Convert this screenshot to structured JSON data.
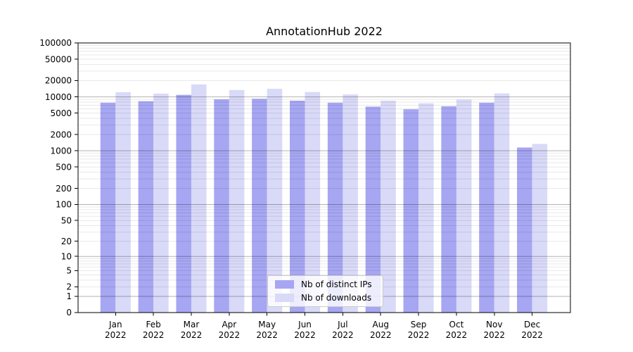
{
  "title": "AnnotationHub 2022",
  "colors": {
    "bar_distinct_ips": "#a6a6f2",
    "bar_downloads": "#d9d9f8",
    "grid_major": "rgba(0,0,0,0.30)",
    "grid_minor": "rgba(0,0,0,0.09)",
    "axis": "#000000",
    "text": "#000000",
    "legend_border": "#cccccc",
    "background": "#ffffff"
  },
  "chart_data": {
    "type": "bar",
    "title": "AnnotationHub 2022",
    "categories": [
      "Jan",
      "Feb",
      "Mar",
      "Apr",
      "May",
      "Jun",
      "Jul",
      "Aug",
      "Sep",
      "Oct",
      "Nov",
      "Dec"
    ],
    "category_year": "2022",
    "series": [
      {
        "key": "distinct-ips",
        "name": "Nb of distinct IPs",
        "color": "#a6a6f2",
        "values": [
          7800,
          8300,
          10900,
          9000,
          9200,
          8500,
          7800,
          6600,
          5900,
          6700,
          7800,
          1150
        ]
      },
      {
        "key": "downloads",
        "name": "Nb of downloads",
        "color": "#d9d9f8",
        "values": [
          12200,
          11500,
          17000,
          13400,
          14100,
          12300,
          11100,
          8500,
          7600,
          8900,
          11600,
          1340
        ]
      }
    ],
    "yscale": "log1p",
    "ylim": [
      0,
      100000
    ],
    "y_ticks": [
      0,
      1,
      2,
      5,
      10,
      20,
      50,
      100,
      200,
      500,
      1000,
      2000,
      5000,
      10000,
      20000,
      50000,
      100000
    ],
    "grid": true,
    "legend_position": "lower center"
  }
}
